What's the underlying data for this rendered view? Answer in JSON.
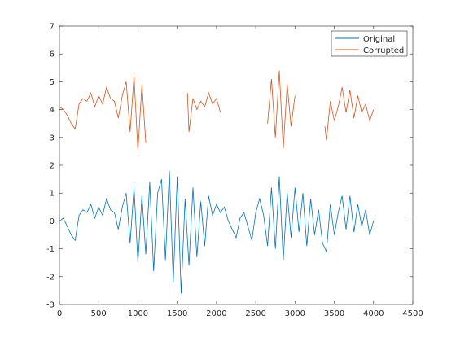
{
  "chart_data": {
    "type": "line",
    "title": "",
    "xlabel": "",
    "ylabel": "",
    "xlim": [
      0,
      4500
    ],
    "ylim": [
      -3,
      7
    ],
    "xticks": [
      0,
      500,
      1000,
      1500,
      2000,
      2500,
      3000,
      3500,
      4000,
      4500
    ],
    "yticks": [
      -3,
      -2,
      -1,
      0,
      1,
      2,
      3,
      4,
      5,
      6,
      7
    ],
    "grid": false,
    "legend_position": "top-right",
    "series": [
      {
        "name": "Original",
        "color": "#0072BD",
        "segments": [
          [
            [
              0,
              0.0
            ],
            [
              50,
              0.1
            ],
            [
              100,
              -0.2
            ],
            [
              150,
              -0.5
            ],
            [
              200,
              -0.7
            ],
            [
              250,
              0.2
            ],
            [
              300,
              0.4
            ],
            [
              350,
              0.3
            ],
            [
              400,
              0.6
            ],
            [
              450,
              0.1
            ],
            [
              500,
              0.5
            ],
            [
              550,
              0.2
            ],
            [
              600,
              0.8
            ],
            [
              650,
              0.4
            ],
            [
              700,
              0.3
            ],
            [
              750,
              -0.3
            ],
            [
              800,
              0.5
            ],
            [
              850,
              1.0
            ],
            [
              900,
              -0.8
            ],
            [
              950,
              1.2
            ],
            [
              1000,
              -1.5
            ],
            [
              1050,
              0.9
            ],
            [
              1100,
              -1.2
            ],
            [
              1150,
              1.4
            ],
            [
              1200,
              -1.8
            ],
            [
              1250,
              1.0
            ],
            [
              1300,
              1.5
            ],
            [
              1350,
              -1.4
            ],
            [
              1400,
              1.8
            ],
            [
              1450,
              -2.2
            ],
            [
              1500,
              1.6
            ],
            [
              1550,
              -2.6
            ],
            [
              1600,
              0.8
            ],
            [
              1650,
              -1.6
            ],
            [
              1700,
              1.2
            ],
            [
              1750,
              -1.3
            ],
            [
              1800,
              0.7
            ],
            [
              1850,
              -0.9
            ],
            [
              1900,
              0.9
            ],
            [
              1950,
              0.2
            ],
            [
              2000,
              0.6
            ],
            [
              2050,
              0.3
            ],
            [
              2100,
              0.5
            ],
            [
              2150,
              0.0
            ],
            [
              2200,
              -0.3
            ],
            [
              2250,
              -0.6
            ],
            [
              2300,
              0.1
            ],
            [
              2350,
              0.3
            ],
            [
              2400,
              -0.2
            ],
            [
              2450,
              -0.7
            ],
            [
              2500,
              0.3
            ],
            [
              2550,
              0.8
            ],
            [
              2600,
              0.2
            ],
            [
              2650,
              -0.9
            ],
            [
              2700,
              1.2
            ],
            [
              2750,
              -1.0
            ],
            [
              2800,
              1.6
            ],
            [
              2850,
              -1.4
            ],
            [
              2900,
              1.0
            ],
            [
              2950,
              -0.6
            ],
            [
              3000,
              1.2
            ],
            [
              3050,
              -0.4
            ],
            [
              3100,
              1.0
            ],
            [
              3150,
              -0.9
            ],
            [
              3200,
              0.8
            ],
            [
              3250,
              -0.5
            ],
            [
              3300,
              0.4
            ],
            [
              3350,
              -0.8
            ],
            [
              3400,
              -1.1
            ],
            [
              3450,
              0.6
            ],
            [
              3500,
              -0.5
            ],
            [
              3550,
              0.3
            ],
            [
              3600,
              0.9
            ],
            [
              3650,
              -0.3
            ],
            [
              3700,
              0.9
            ],
            [
              3750,
              -0.4
            ],
            [
              3800,
              0.6
            ],
            [
              3850,
              -0.2
            ],
            [
              3900,
              0.4
            ],
            [
              3950,
              -0.5
            ],
            [
              4000,
              0.0
            ]
          ]
        ]
      },
      {
        "name": "Corrupted",
        "color": "#D95319",
        "segments": [
          [
            [
              0,
              4.1
            ],
            [
              50,
              4.0
            ],
            [
              100,
              3.8
            ],
            [
              150,
              3.5
            ],
            [
              200,
              3.3
            ],
            [
              250,
              4.2
            ],
            [
              300,
              4.4
            ],
            [
              350,
              4.3
            ],
            [
              400,
              4.6
            ],
            [
              450,
              4.1
            ],
            [
              500,
              4.5
            ],
            [
              550,
              4.2
            ],
            [
              600,
              4.8
            ],
            [
              650,
              4.4
            ],
            [
              700,
              4.3
            ],
            [
              750,
              3.7
            ],
            [
              800,
              4.5
            ],
            [
              850,
              5.0
            ],
            [
              900,
              3.2
            ],
            [
              950,
              5.2
            ],
            [
              1000,
              2.5
            ],
            [
              1050,
              4.9
            ],
            [
              1100,
              2.8
            ]
          ],
          [
            [
              1630,
              4.6
            ],
            [
              1650,
              3.2
            ],
            [
              1700,
              4.4
            ],
            [
              1750,
              4.0
            ],
            [
              1800,
              4.3
            ],
            [
              1850,
              4.1
            ],
            [
              1900,
              4.6
            ],
            [
              1950,
              4.2
            ],
            [
              2000,
              4.4
            ],
            [
              2050,
              3.9
            ]
          ],
          [
            [
              2650,
              3.5
            ],
            [
              2700,
              5.1
            ],
            [
              2750,
              3.0
            ],
            [
              2800,
              5.4
            ],
            [
              2850,
              2.6
            ],
            [
              2900,
              4.9
            ],
            [
              2950,
              3.4
            ],
            [
              3000,
              4.5
            ]
          ],
          [
            [
              3380,
              3.4
            ],
            [
              3400,
              2.9
            ],
            [
              3450,
              4.3
            ],
            [
              3500,
              3.6
            ],
            [
              3550,
              4.1
            ],
            [
              3600,
              4.8
            ],
            [
              3650,
              3.9
            ],
            [
              3700,
              4.7
            ],
            [
              3750,
              3.7
            ],
            [
              3800,
              4.5
            ],
            [
              3850,
              3.9
            ],
            [
              3900,
              4.2
            ],
            [
              3950,
              3.6
            ],
            [
              4000,
              4.0
            ]
          ]
        ]
      }
    ]
  }
}
